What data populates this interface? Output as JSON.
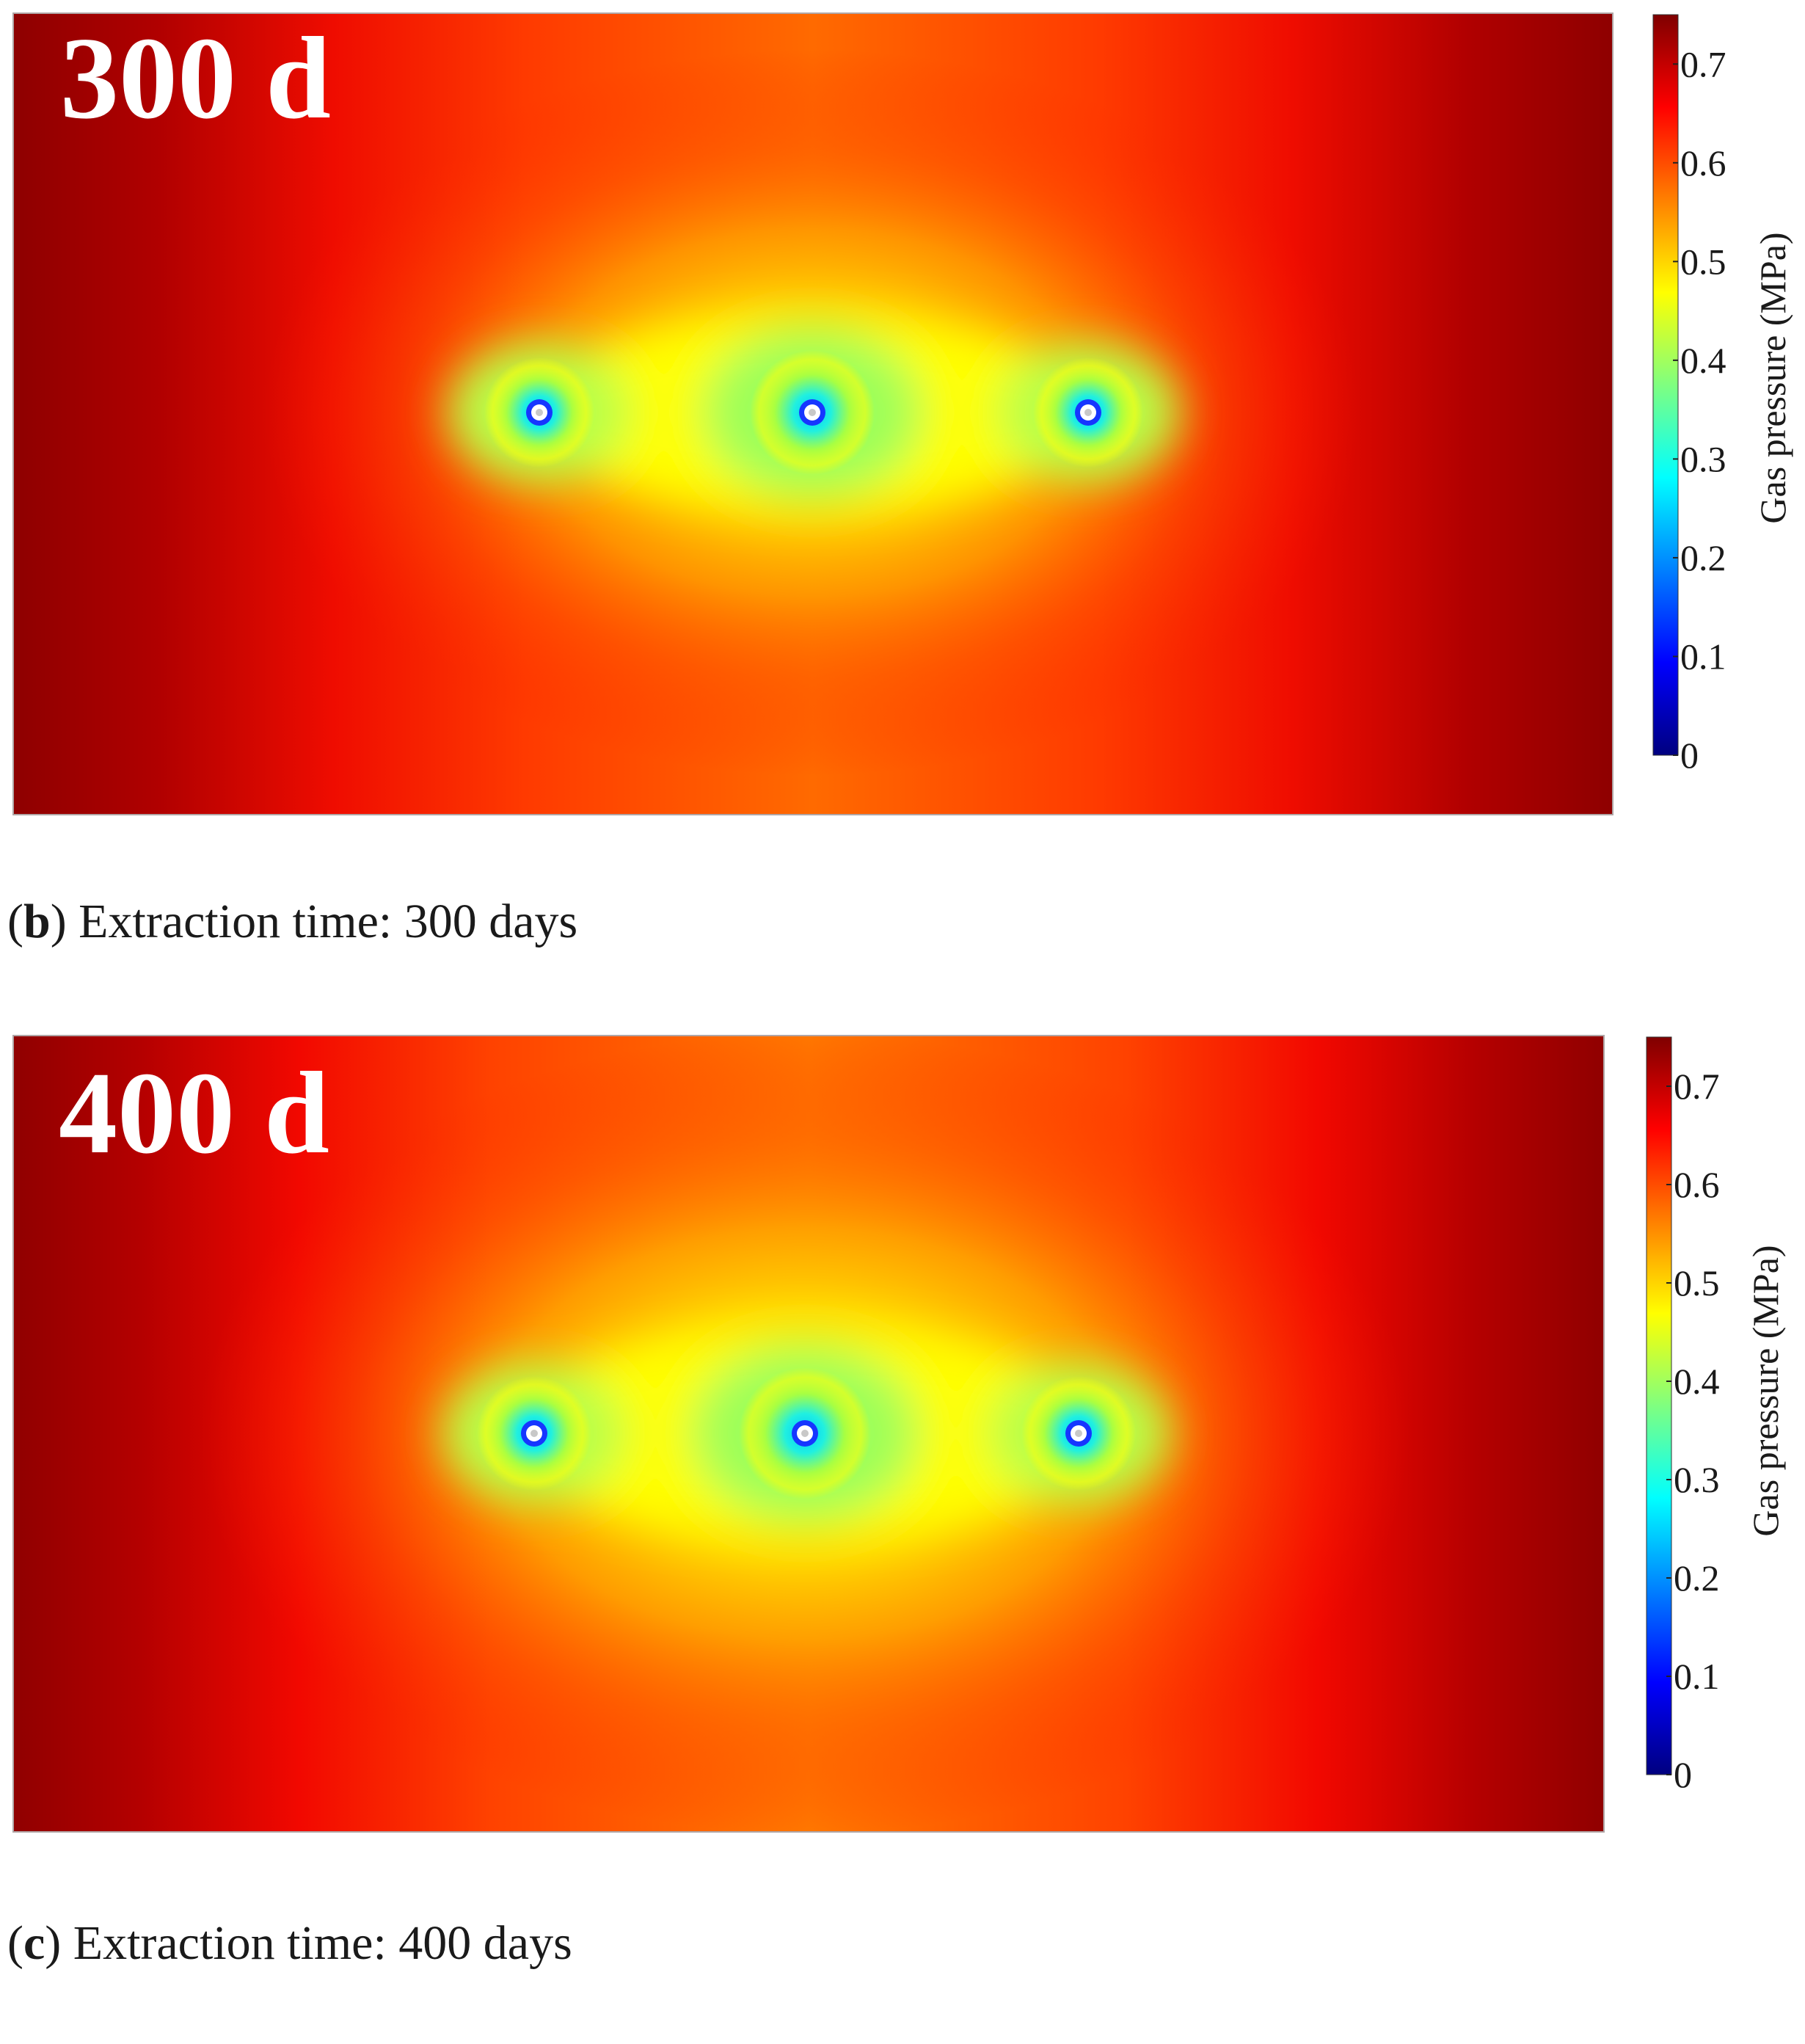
{
  "chart_data": [
    {
      "type": "heatmap",
      "panel_label": "300 d",
      "caption": {
        "prefix": "(",
        "letter": "b",
        "text": ") Extraction time: 300 days"
      },
      "colorbar": {
        "label": "Gas pressure (MPa)",
        "range": [
          0,
          0.75
        ],
        "ticks": [
          0,
          0.1,
          0.2,
          0.3,
          0.4,
          0.5,
          0.6,
          0.7
        ],
        "tick_labels": [
          "0",
          "0.1",
          "0.2",
          "0.3",
          "0.4",
          "0.5",
          "0.6",
          "0.7"
        ],
        "colormap": [
          "#00007f",
          "#0000ff",
          "#00ffff",
          "#ffff00",
          "#ff7f00",
          "#ff0000",
          "#7f0000"
        ]
      },
      "field": {
        "boundary_pressure": 0.72,
        "center_pressure": 0.48,
        "borehole_pressure": 0
      }
    },
    {
      "type": "heatmap",
      "panel_label": "400 d",
      "caption": {
        "prefix": "(",
        "letter": "c",
        "text": ") Extraction time: 400 days"
      },
      "colorbar": {
        "label": "Gas pressure (MPa)",
        "range": [
          0,
          0.75
        ],
        "ticks": [
          0,
          0.1,
          0.2,
          0.3,
          0.4,
          0.5,
          0.6,
          0.7
        ],
        "tick_labels": [
          "0",
          "0.1",
          "0.2",
          "0.3",
          "0.4",
          "0.5",
          "0.6",
          "0.7"
        ],
        "colormap": [
          "#00007f",
          "#0000ff",
          "#00ffff",
          "#ffff00",
          "#ff7f00",
          "#ff0000",
          "#7f0000"
        ]
      },
      "field": {
        "boundary_pressure": 0.7,
        "center_pressure": 0.46,
        "borehole_pressure": 0
      }
    }
  ]
}
